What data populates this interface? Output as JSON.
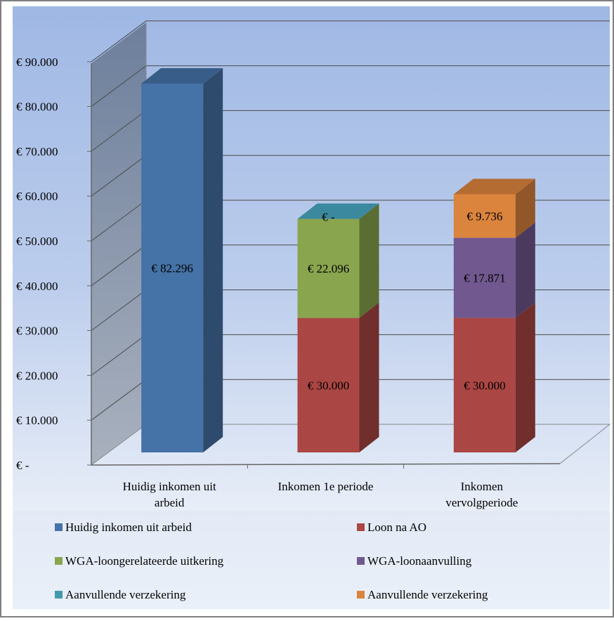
{
  "chart_data": {
    "type": "bar",
    "stacked": true,
    "three_d": true,
    "categories": [
      "Huidig inkomen uit arbeid",
      "Inkomen 1e periode",
      "Inkomen vervolgperiode"
    ],
    "category_lines": [
      [
        "Huidig inkomen uit",
        "arbeid"
      ],
      [
        "Inkomen 1e periode"
      ],
      [
        "Inkomen",
        "vervolgperiode"
      ]
    ],
    "series": [
      {
        "name": "Huidig inkomen uit arbeid",
        "values": [
          82296,
          0,
          0
        ],
        "labels": [
          "€ 82.296",
          "",
          ""
        ],
        "color": "#4572A7"
      },
      {
        "name": "Loon na AO",
        "values": [
          0,
          30000,
          30000
        ],
        "labels": [
          "",
          "€ 30.000",
          "€ 30.000"
        ],
        "color": "#AA4643"
      },
      {
        "name": "WGA-loongerelateerde uitkering",
        "values": [
          0,
          22096,
          0
        ],
        "labels": [
          "",
          "€ 22.096",
          ""
        ],
        "color": "#89A54E"
      },
      {
        "name": "WGA-loonaanvulling",
        "values": [
          0,
          0,
          17871
        ],
        "labels": [
          "",
          "",
          "€ 17.871"
        ],
        "color": "#71588F"
      },
      {
        "name": "Aanvullende verzekering",
        "values": [
          0,
          0,
          0
        ],
        "labels": [
          "",
          "€ -",
          ""
        ],
        "color": "#4198AF"
      },
      {
        "name": "Aanvullende verzekering",
        "values": [
          0,
          0,
          9736
        ],
        "labels": [
          "",
          "",
          "€ 9.736"
        ],
        "color": "#DB843D"
      }
    ],
    "y_ticks": [
      {
        "value": 0,
        "label": "€ -"
      },
      {
        "value": 10000,
        "label": "€ 10.000"
      },
      {
        "value": 20000,
        "label": "€ 20.000"
      },
      {
        "value": 30000,
        "label": "€ 30.000"
      },
      {
        "value": 40000,
        "label": "€ 40.000"
      },
      {
        "value": 50000,
        "label": "€ 50.000"
      },
      {
        "value": 60000,
        "label": "€ 60.000"
      },
      {
        "value": 70000,
        "label": "€ 70.000"
      },
      {
        "value": 80000,
        "label": "€ 80.000"
      },
      {
        "value": 90000,
        "label": "€ 90.000"
      }
    ],
    "ylim": [
      0,
      90000
    ],
    "grid": true,
    "legend_position": "bottom",
    "title": "",
    "xlabel": "",
    "ylabel": ""
  }
}
